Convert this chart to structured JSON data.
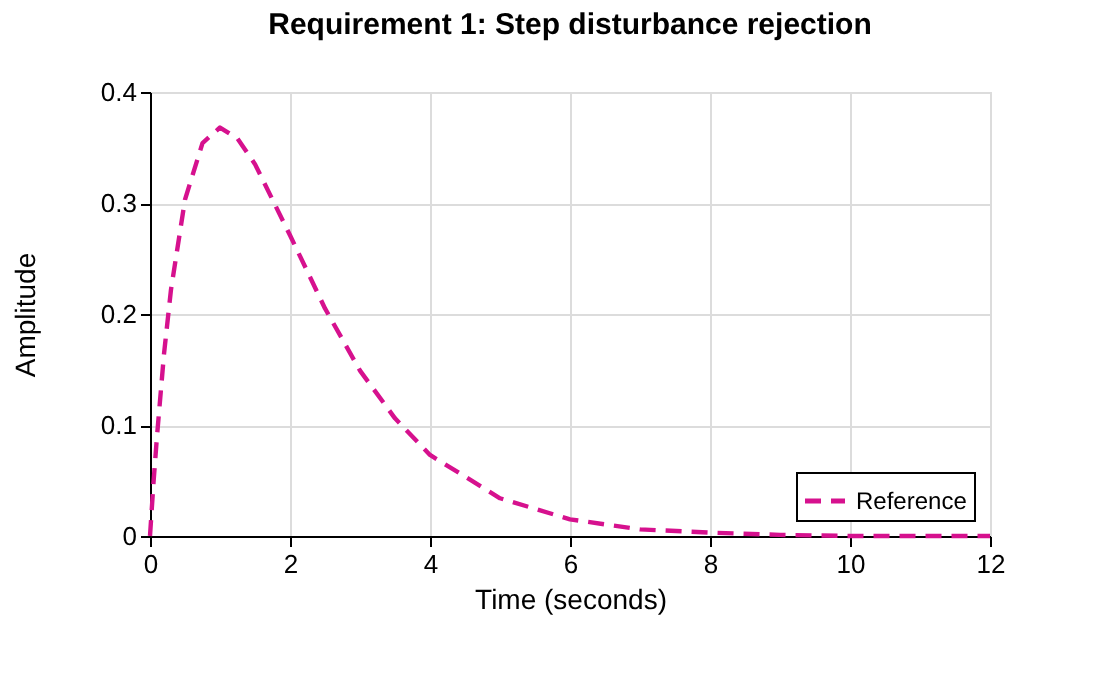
{
  "chart_data": {
    "type": "line",
    "title": "Requirement 1: Step disturbance rejection",
    "xlabel": "Time (seconds)",
    "ylabel": "Amplitude",
    "x": [
      0,
      0.05,
      0.1,
      0.2,
      0.3,
      0.5,
      0.75,
      1,
      1.25,
      1.5,
      2,
      2.5,
      3,
      3.5,
      4,
      5,
      6,
      7,
      8,
      9,
      10,
      12
    ],
    "series": [
      {
        "name": "Reference",
        "color": "#d6118e",
        "values": [
          0,
          0.048,
          0.09,
          0.164,
          0.222,
          0.303,
          0.354,
          0.368,
          0.358,
          0.335,
          0.271,
          0.205,
          0.149,
          0.106,
          0.073,
          0.034,
          0.015,
          0.006,
          0.003,
          0.001,
          0,
          0
        ]
      }
    ],
    "xlim": [
      0,
      12
    ],
    "xticks": [
      0,
      2,
      4,
      6,
      8,
      10,
      12
    ],
    "ylim": [
      0,
      0.4
    ],
    "yticks": [
      0,
      0.1,
      0.2,
      0.3,
      0.4
    ],
    "grid": true,
    "legend": "bottom right",
    "line_style": "dashed",
    "marker": "none"
  }
}
